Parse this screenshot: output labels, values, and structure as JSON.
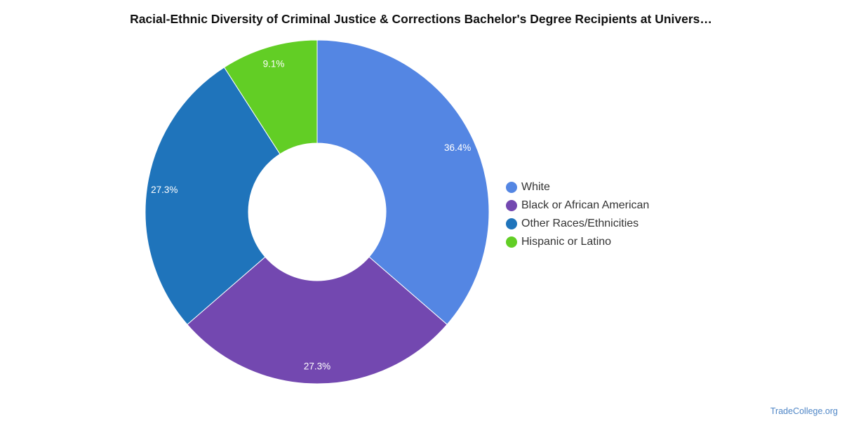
{
  "colors": {
    "white": "#5486e3",
    "black_or_african_american": "#7348b0",
    "other_races": "#1f74bb",
    "hispanic_or_latino": "#62ce25"
  },
  "chart_data": {
    "type": "pie",
    "variant": "donut",
    "title": "Racial-Ethnic Diversity of Criminal Justice & Corrections Bachelor's Degree Recipients at Univers…",
    "legend_position": "right",
    "slices": [
      {
        "name": "White",
        "value": 36.4,
        "label": "36.4%",
        "color": "#5486e3"
      },
      {
        "name": "Black or African American",
        "value": 27.3,
        "label": "27.3%",
        "color": "#7348b0"
      },
      {
        "name": "Other Races/Ethnicities",
        "value": 27.3,
        "label": "27.3%",
        "color": "#1f74bb"
      },
      {
        "name": "Hispanic or Latino",
        "value": 9.1,
        "label": "9.1%",
        "color": "#62ce25"
      }
    ]
  },
  "source": "TradeCollege.org"
}
